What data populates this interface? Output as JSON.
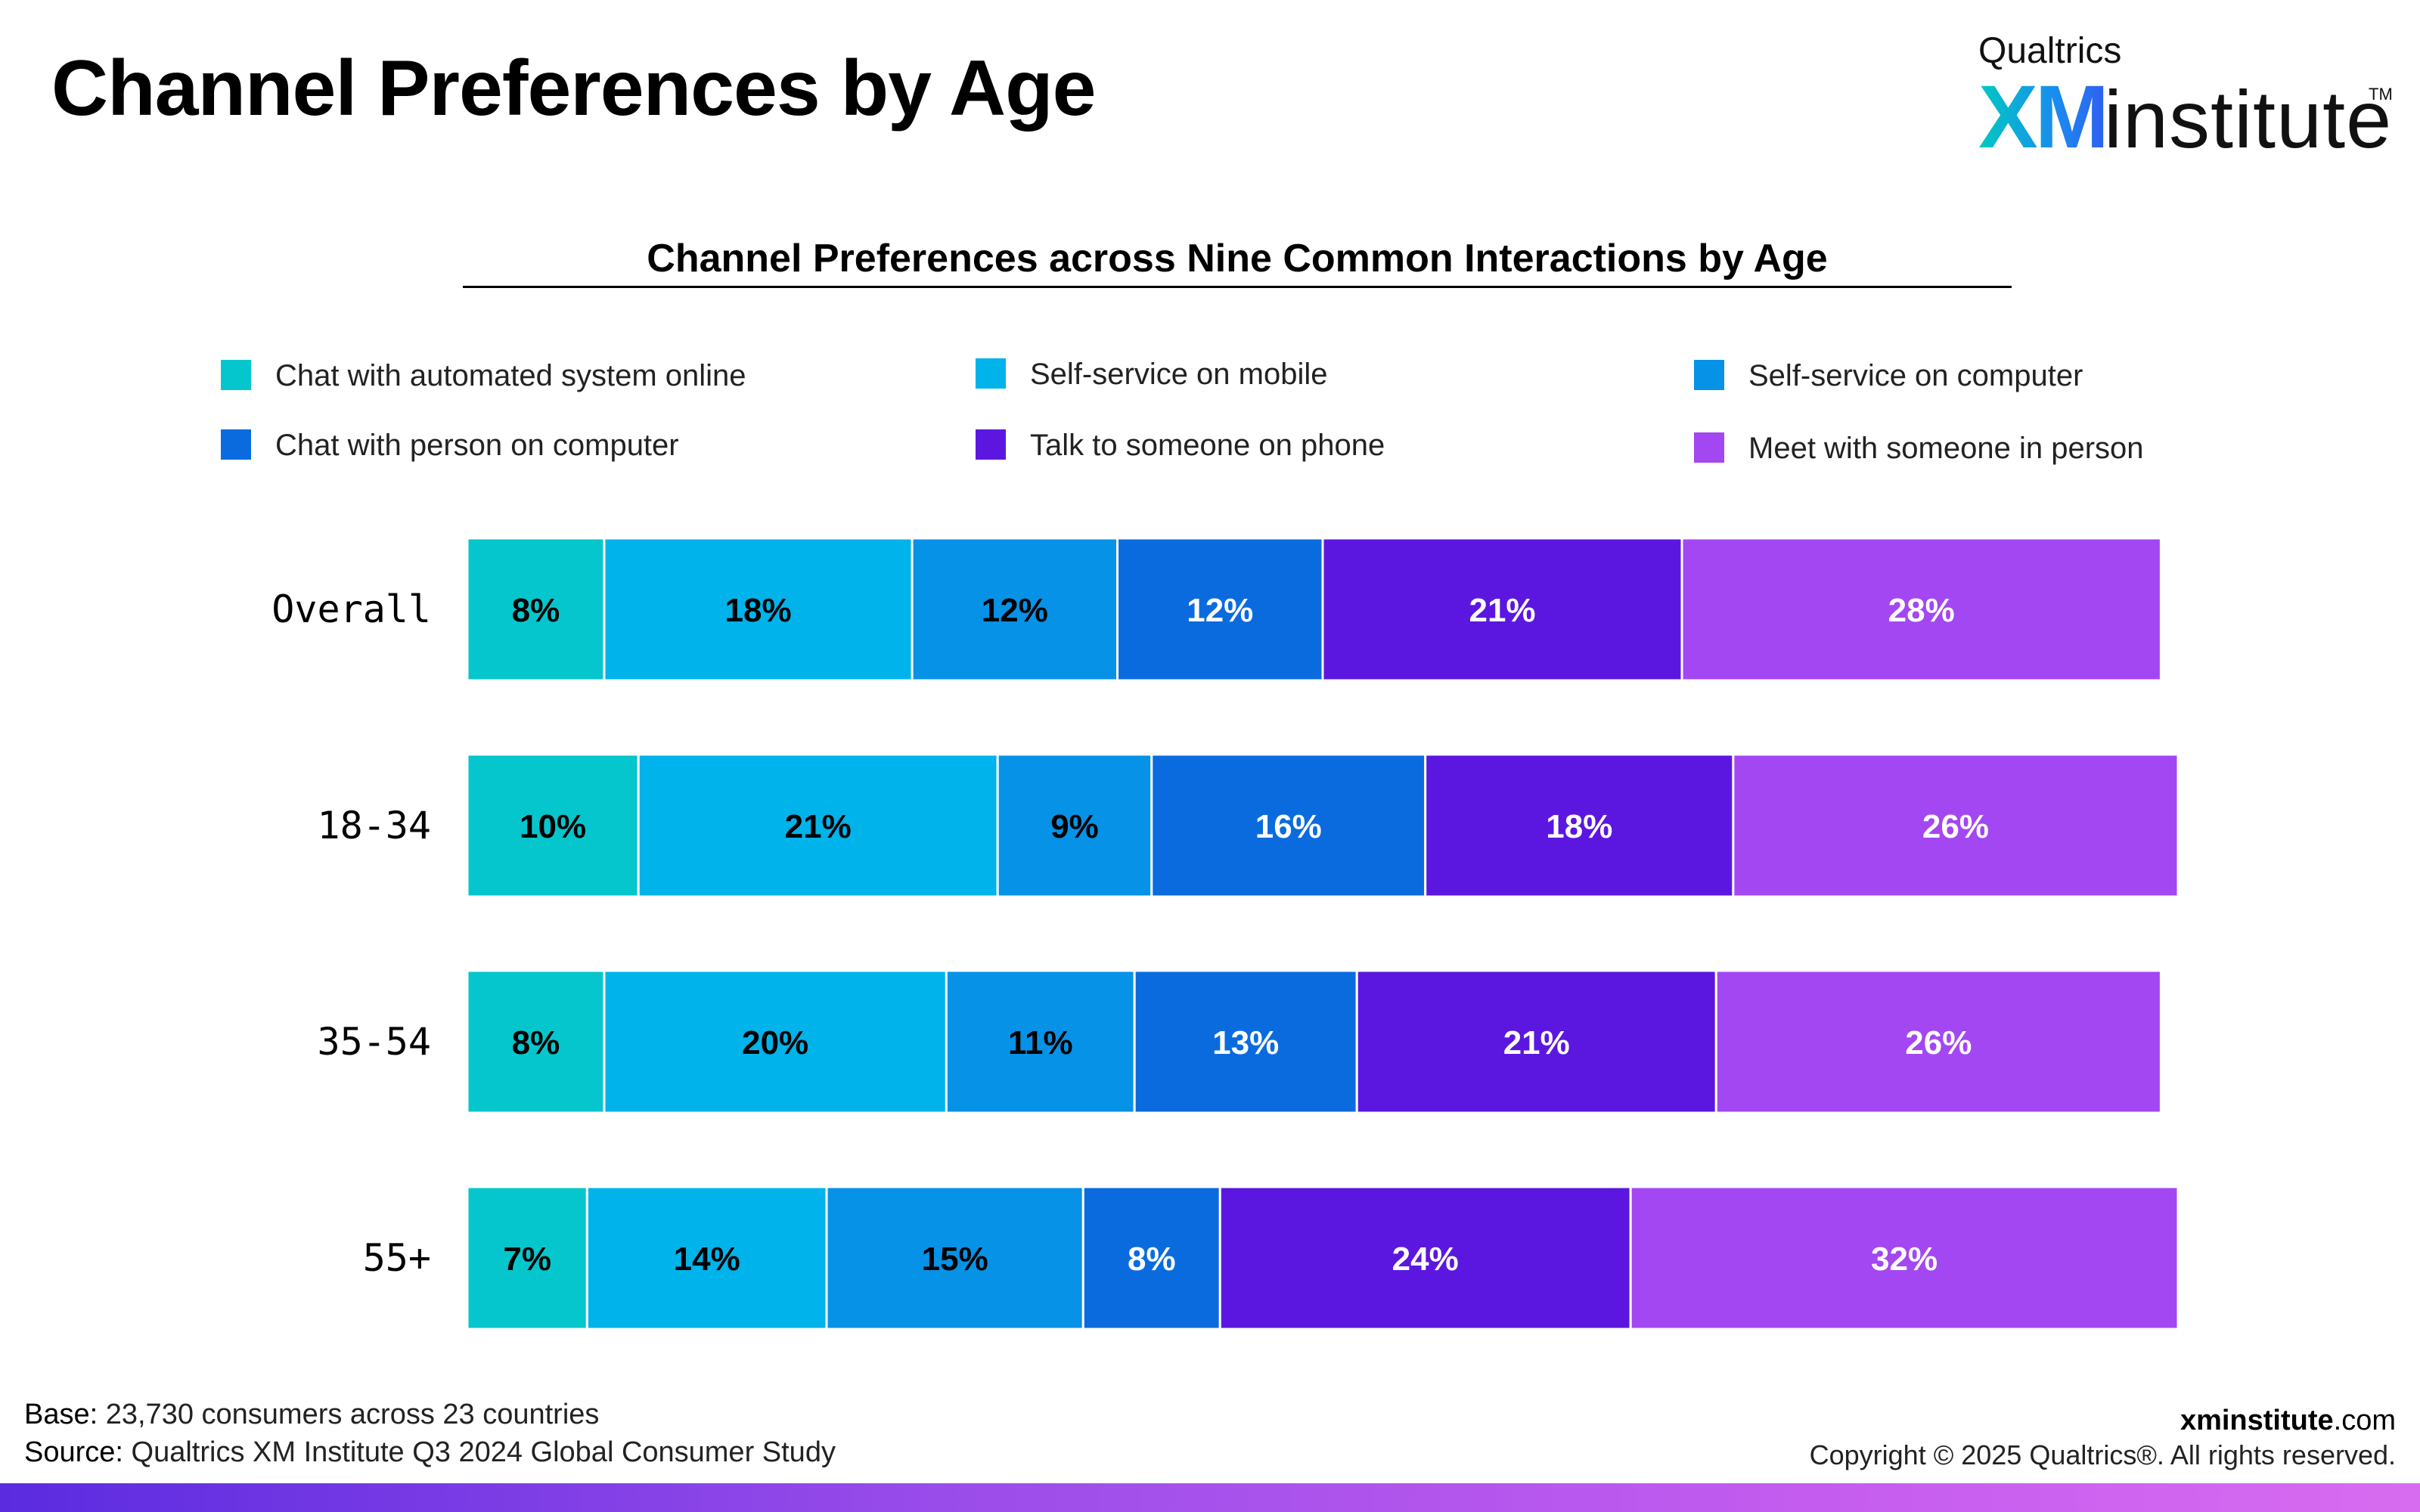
{
  "header": {
    "title": "Channel Preferences by Age"
  },
  "logo": {
    "top": "Qualtrics",
    "xm": "XM",
    "institute": "institute",
    "tm": "TM"
  },
  "chart_data": {
    "type": "bar",
    "orientation": "horizontal",
    "stacked": true,
    "title": "Channel Preferences across Nine Common Interactions by Age",
    "categories": [
      "Overall",
      "18-34",
      "35-54",
      "55+"
    ],
    "series": [
      {
        "name": "Chat with automated system online",
        "color": "#05c6cc",
        "values": [
          8,
          10,
          8,
          7
        ]
      },
      {
        "name": "Self-service on mobile",
        "color": "#00b3ea",
        "values": [
          18,
          21,
          20,
          14
        ]
      },
      {
        "name": "Self-service on computer",
        "color": "#0692e6",
        "values": [
          12,
          9,
          11,
          15
        ]
      },
      {
        "name": "Chat with person on computer",
        "color": "#0a6bde",
        "values": [
          12,
          16,
          13,
          8
        ]
      },
      {
        "name": "Talk to someone on phone",
        "color": "#5b17e0",
        "values": [
          21,
          18,
          21,
          24
        ]
      },
      {
        "name": "Meet with someone in person",
        "color": "#a347f2",
        "values": [
          28,
          26,
          26,
          32
        ]
      }
    ],
    "label_colors": [
      "#000000",
      "#000000",
      "#000000",
      "#ffffff",
      "#ffffff",
      "#ffffff"
    ],
    "value_suffix": "%",
    "legend_placement": "top",
    "grid": false,
    "xlim": [
      0,
      100
    ]
  },
  "footer": {
    "base_label": "Base:",
    "base_text": " 23,730 consumers across 23 countries",
    "source_label": "Source:",
    "source_text": " Qualtrics XM Institute Q3 2024 Global Consumer Study",
    "site_bold": "xminstitute",
    "site_rest": ".com",
    "copyright": "Copyright © 2025 Qualtrics®. All rights reserved."
  }
}
